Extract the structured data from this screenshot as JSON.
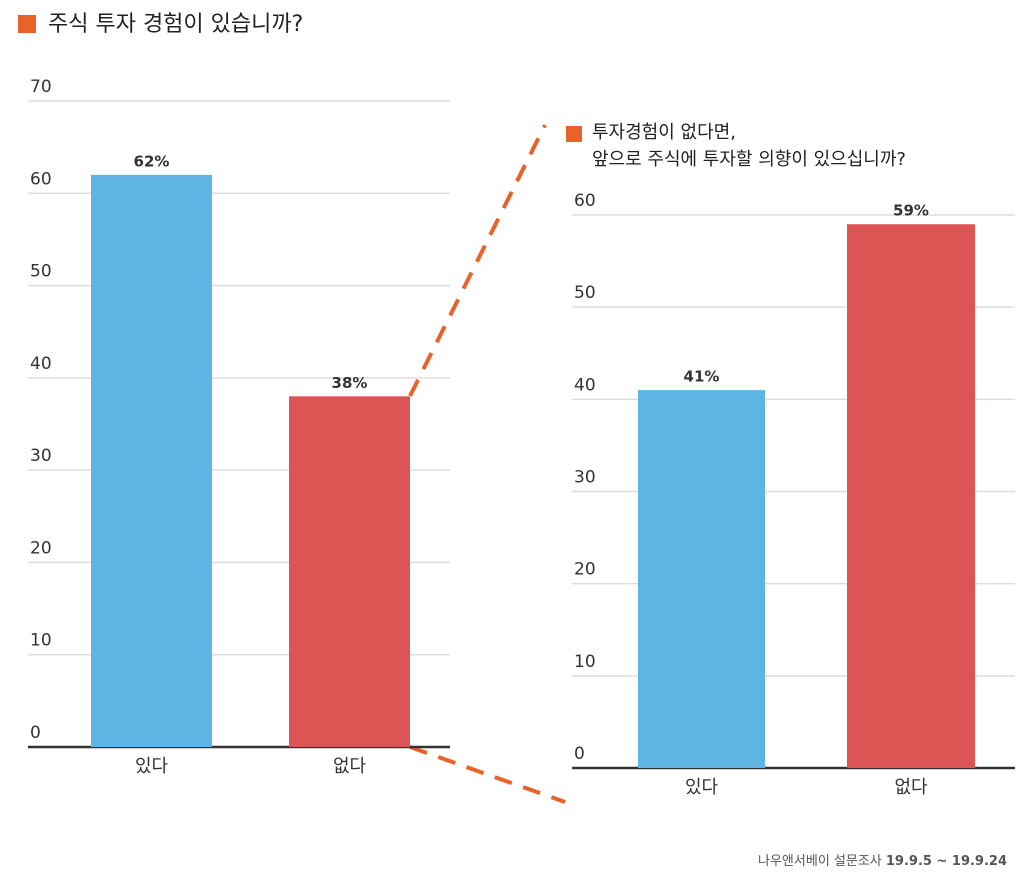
{
  "chart_data": [
    {
      "type": "bar",
      "title": "주식 투자 경험이 있습니까?",
      "categories": [
        "있다",
        "없다"
      ],
      "values": [
        62,
        38
      ],
      "value_labels": [
        "62%",
        "38%"
      ],
      "colors": [
        "#5eb4e3",
        "#dc5555"
      ],
      "ylim": [
        0,
        70
      ],
      "yticks": [
        0,
        10,
        20,
        30,
        40,
        50,
        60,
        70
      ],
      "grid": true
    },
    {
      "type": "bar",
      "title": "투자경험이 없다면,\n앞으로 주식에 투자할 의향이 있으십니까?",
      "categories": [
        "있다",
        "없다"
      ],
      "values": [
        41,
        59
      ],
      "value_labels": [
        "41%",
        "59%"
      ],
      "colors": [
        "#5eb4e3",
        "#dc5555"
      ],
      "ylim": [
        0,
        60
      ],
      "yticks": [
        0,
        10,
        20,
        30,
        40,
        50,
        60
      ],
      "grid": true
    }
  ],
  "source": {
    "name": "나우앤서베이 설문조사",
    "period": "19.9.5 ~ 19.9.24"
  }
}
